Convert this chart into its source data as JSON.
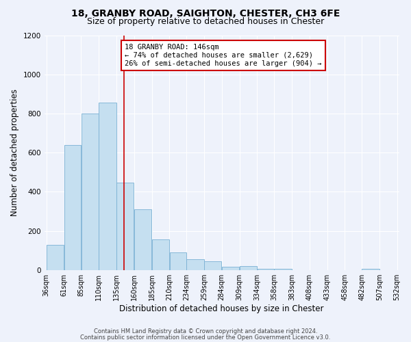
{
  "title1": "18, GRANBY ROAD, SAIGHTON, CHESTER, CH3 6FE",
  "title2": "Size of property relative to detached houses in Chester",
  "xlabel": "Distribution of detached houses by size in Chester",
  "ylabel": "Number of detached properties",
  "bar_left_edges": [
    36,
    61,
    85,
    110,
    135,
    160,
    185,
    210,
    234,
    259,
    284,
    309,
    334,
    358,
    383,
    408,
    433,
    458,
    482,
    507
  ],
  "bar_widths": [
    25,
    24,
    25,
    25,
    25,
    25,
    25,
    24,
    25,
    25,
    25,
    25,
    24,
    25,
    25,
    25,
    25,
    24,
    25,
    25
  ],
  "bar_heights": [
    130,
    640,
    800,
    855,
    445,
    310,
    155,
    90,
    55,
    45,
    15,
    20,
    5,
    5,
    0,
    0,
    0,
    0,
    5,
    0
  ],
  "tick_labels": [
    "36sqm",
    "61sqm",
    "85sqm",
    "110sqm",
    "135sqm",
    "160sqm",
    "185sqm",
    "210sqm",
    "234sqm",
    "259sqm",
    "284sqm",
    "309sqm",
    "334sqm",
    "358sqm",
    "383sqm",
    "408sqm",
    "433sqm",
    "458sqm",
    "482sqm",
    "507sqm",
    "532sqm"
  ],
  "bar_color": "#c5dff0",
  "bar_edgecolor": "#7ab0d4",
  "background_color": "#eef2fb",
  "grid_color": "#ffffff",
  "ylim": [
    0,
    1200
  ],
  "yticks": [
    0,
    200,
    400,
    600,
    800,
    1000,
    1200
  ],
  "property_line_x": 146,
  "annotation_line1": "18 GRANBY ROAD: 146sqm",
  "annotation_line2": "← 74% of detached houses are smaller (2,629)",
  "annotation_line3": "26% of semi-detached houses are larger (904) →",
  "annotation_box_color": "#cc0000",
  "footer1": "Contains HM Land Registry data © Crown copyright and database right 2024.",
  "footer2": "Contains public sector information licensed under the Open Government Licence v3.0.",
  "title_fontsize": 10,
  "subtitle_fontsize": 9,
  "ylabel_fontsize": 8.5,
  "xlabel_fontsize": 8.5,
  "tick_fontsize": 7,
  "annotation_fontsize": 7.5,
  "footer_fontsize": 6
}
